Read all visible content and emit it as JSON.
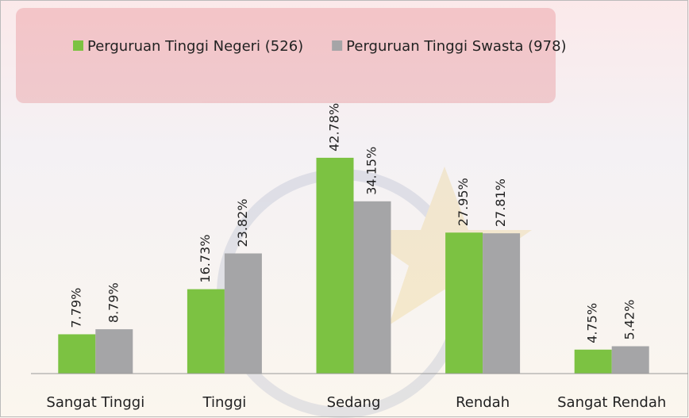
{
  "chart_data": {
    "type": "bar",
    "categories": [
      "Sangat Tinggi",
      "Tinggi",
      "Sedang",
      "Rendah",
      "Sangat Rendah"
    ],
    "series": [
      {
        "name": "Perguruan Tinggi Negeri (526)",
        "color": "#7cc242",
        "values": [
          7.79,
          16.73,
          42.78,
          27.95,
          4.75
        ],
        "value_labels": [
          "7.79%",
          "16.73%",
          "42.78%",
          "27.95%",
          "4.75%"
        ]
      },
      {
        "name": "Perguruan Tinggi Swasta (978)",
        "color": "#a5a5a7",
        "values": [
          8.79,
          23.82,
          34.15,
          27.81,
          5.42
        ],
        "value_labels": [
          "8.79%",
          "23.82%",
          "34.15%",
          "27.81%",
          "5.42%"
        ]
      }
    ],
    "legend": "top"
  }
}
